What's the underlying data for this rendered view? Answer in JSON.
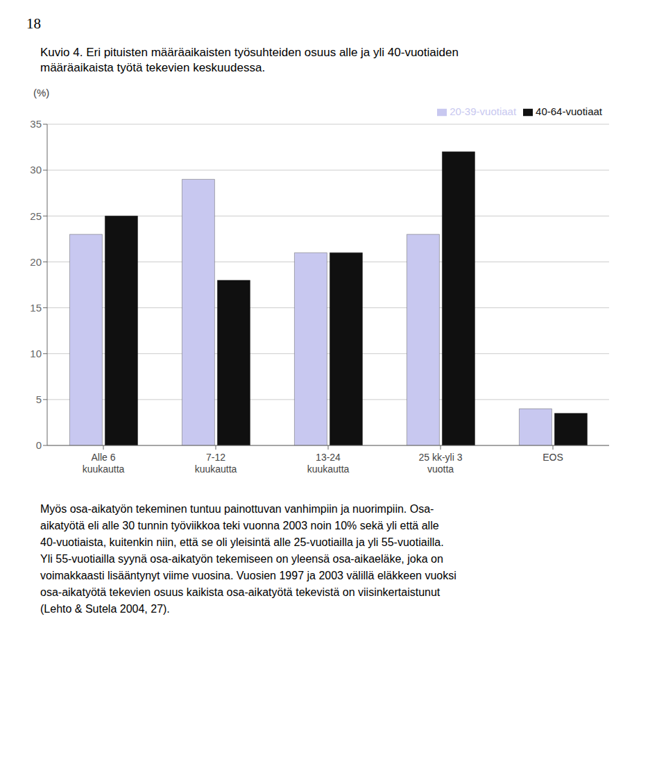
{
  "chart_data": {
    "type": "bar",
    "title": "Kuvio 4. Eri pituisten määräaikaisten työsuhteiden osuus alle ja yli 40-vuotiaiden\nmääräaikaista työtä tekevien keskuudessa.",
    "categories": [
      "Alle 6\nkuukautta",
      "7-12\nkuukautta",
      "13-24\nkuukautta",
      "25 kk-yli 3\nvuotta",
      "EOS"
    ],
    "series": [
      {
        "name": "20-39-vuotiaat",
        "color": "#c8c8f0",
        "values": [
          23,
          29,
          21,
          23,
          4
        ]
      },
      {
        "name": "40-64-vuotiaat",
        "color": "#101010",
        "values": [
          25,
          18,
          21,
          32,
          3.5
        ]
      }
    ],
    "y_label": "(%)",
    "ylim": [
      0,
      35
    ],
    "yticks": [
      0,
      5,
      10,
      15,
      20,
      25,
      30,
      35
    ],
    "grid": true,
    "legend": "upper right",
    "annotations": [
      "18",
      "Myös osa-aikatyön tekeminen tuntuu painottuvan vanhimpiin ja nuorimpiin. Osa-\naikatyötä eli alle 30 tunnin työviikkoa teki vuonna 2003 noin 10% sekä yli että alle\n40-vuotiaista, kuitenkin niin, että se oli yleisintä alle 25-vuotiailla ja yli 55-vuotiailla.\nYli 55-vuotiailla syynä osa-aikatyön tekemiseen on yleensä osa-aikaeläke, joka on\nvoimakkaasti lisääntynyt viime vuosina. Vuosien 1997 ja 2003 välillä eläkkeen vuoksi\nosa-aikatyötä tekevien osuus kaikista osa-aikatyötä tekevistä on viisinkertaistunut\n(Lehto & Sutela 2004, 27)."
    ]
  }
}
